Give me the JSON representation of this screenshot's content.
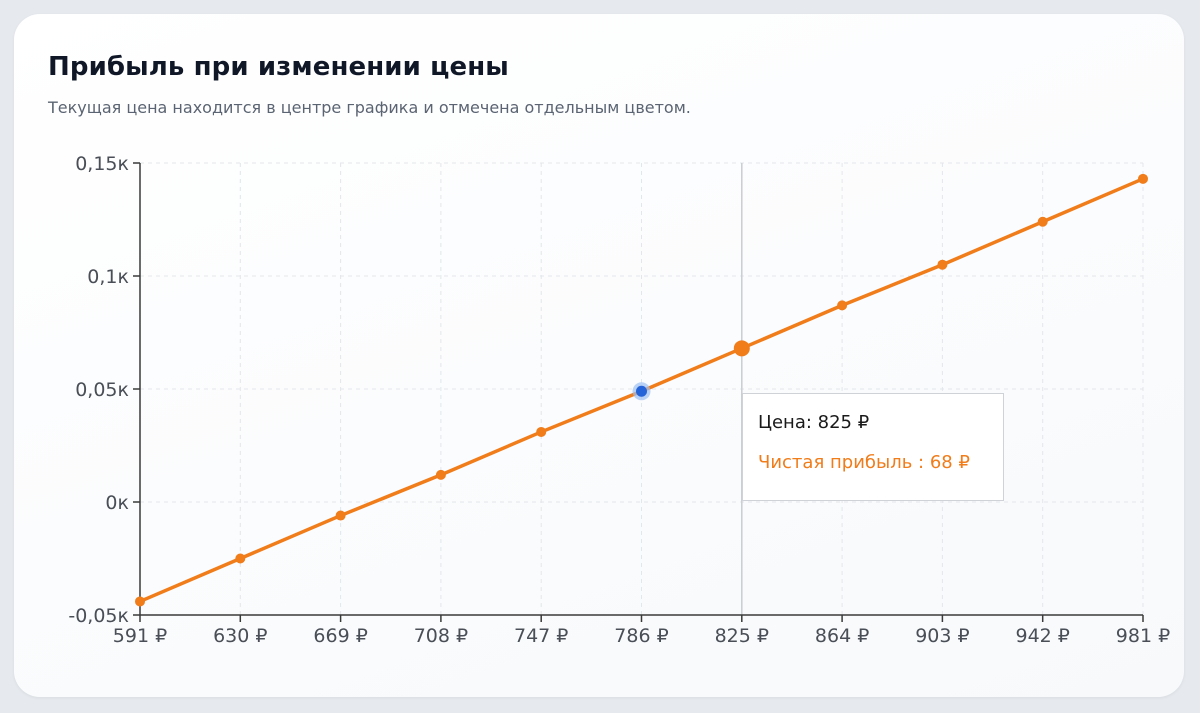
{
  "card": {
    "title": "Прибыль при изменении цены",
    "subtitle": "Текущая цена находится в центре графика и отмечена отдельным цветом."
  },
  "colors": {
    "line": "#f07c1a",
    "current_point": "#2563d9",
    "grid": "#e3e6ea",
    "axis": "#3a3a3a",
    "crosshair": "#c9ccd1"
  },
  "tooltip": {
    "price_label": "Цена",
    "price_value": "825 ₽",
    "profit_label": "Чистая прибыль ",
    "profit_value": "68 ₽",
    "row1": "Цена: 825 ₽",
    "row2": "Чистая прибыль : 68 ₽"
  },
  "chart_data": {
    "type": "line",
    "title": "Прибыль при изменении цены",
    "xlabel": "",
    "ylabel": "",
    "x": [
      591,
      630,
      669,
      708,
      747,
      786,
      825,
      864,
      903,
      942,
      981
    ],
    "x_tick_labels": [
      "591 ₽",
      "630 ₽",
      "669 ₽",
      "708 ₽",
      "747 ₽",
      "786 ₽",
      "825 ₽",
      "864 ₽",
      "903 ₽",
      "942 ₽",
      "981 ₽"
    ],
    "series": [
      {
        "name": "Чистая прибыль",
        "values": [
          -44,
          -25,
          -6,
          12,
          31,
          49,
          68,
          87,
          105,
          124,
          143
        ]
      }
    ],
    "current_price_index": 5,
    "hovered_index": 6,
    "ylim": [
      -50,
      150
    ],
    "y_ticks": [
      -50,
      0,
      50,
      100,
      150
    ],
    "y_tick_labels": [
      "-0,05к",
      "0к",
      "0,05к",
      "0,1к",
      "0,15к"
    ],
    "grid": true,
    "legend": "none"
  }
}
